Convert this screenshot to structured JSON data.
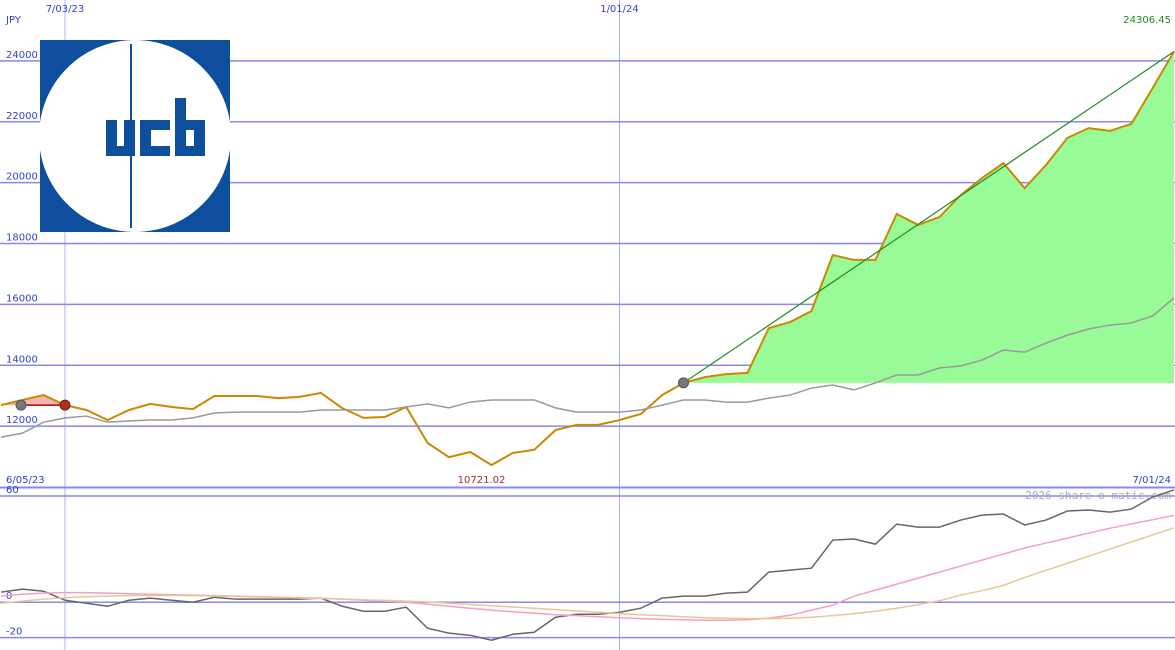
{
  "chart_data": [
    {
      "type": "line",
      "ylabel": "JPY",
      "x_start_label": "6/05/23",
      "x_end_label": "7/01/24",
      "categories": [
        null,
        null,
        null,
        "7/03/23",
        null,
        null,
        null,
        null,
        null,
        null,
        null,
        null,
        null,
        null,
        null,
        null,
        null,
        null,
        null,
        null,
        null,
        null,
        null,
        null,
        null,
        null,
        null,
        null,
        null,
        "1/01/24",
        null,
        null,
        null,
        null,
        null,
        null,
        null,
        null,
        null,
        null,
        null,
        null,
        null,
        null,
        null,
        null,
        null,
        null,
        null,
        null,
        null,
        null,
        null,
        null,
        null,
        null
      ],
      "series": [
        {
          "color": "#cc8800",
          "values": [
            12690,
            12860,
            13020,
            12690,
            12530,
            12200,
            12530,
            12730,
            12630,
            12560,
            12990,
            12990,
            12990,
            12920,
            12960,
            13090,
            12590,
            12270,
            12300,
            12630,
            11450,
            10980,
            11150,
            10721.02,
            11120,
            11220,
            11870,
            12040,
            12040,
            12200,
            12400,
            13020,
            13420,
            13610,
            13710,
            13750,
            15220,
            15420,
            15780,
            17620,
            17460,
            17460,
            18970,
            18610,
            18870,
            19590,
            20150,
            20640,
            19820,
            20580,
            21470,
            21790,
            21700,
            21930,
            23110,
            24306.45
          ]
        },
        {
          "color": "#999999",
          "values": [
            11640,
            11770,
            12130,
            12270,
            12330,
            12130,
            12170,
            12200,
            12200,
            12270,
            12430,
            12460,
            12460,
            12460,
            12460,
            12530,
            12530,
            12530,
            12530,
            12630,
            12730,
            12600,
            12790,
            12860,
            12860,
            12860,
            12600,
            12460,
            12460,
            12460,
            12530,
            12690,
            12860,
            12860,
            12790,
            12790,
            12920,
            13020,
            13250,
            13350,
            13190,
            13420,
            13680,
            13680,
            13910,
            13980,
            14170,
            14500,
            14430,
            14730,
            14990,
            15190,
            15320,
            15390,
            15620,
            16210
          ]
        }
      ],
      "ylim": [
        10000,
        26000
      ],
      "yticks": [
        12000,
        14000,
        16000,
        18000,
        20000,
        22000,
        24000
      ],
      "grid": true
    },
    {
      "type": "line",
      "watermark": "2026 share-o-matic.com",
      "series": [
        {
          "color": "#666666",
          "values": [
            5.7,
            7.4,
            6.2,
            1.1,
            -0.6,
            -2.3,
            1.1,
            2.3,
            1.1,
            0,
            2.8,
            1.7,
            1.7,
            1.7,
            1.7,
            2.3,
            -2.3,
            -5.1,
            -5.1,
            -2.8,
            -14.7,
            -17.5,
            -18.7,
            -21.5,
            -18.1,
            -17,
            -8.5,
            -6.8,
            -6.8,
            -5.7,
            -3.4,
            2.3,
            3.4,
            3.4,
            5.1,
            5.7,
            17,
            18.1,
            19.2,
            35.1,
            35.7,
            32.8,
            44.1,
            42.4,
            42.4,
            46.4,
            49.2,
            49.8,
            43.6,
            46.4,
            51.5,
            52.1,
            50.9,
            52.6,
            59.4,
            63.4
          ]
        },
        {
          "color": "#f4a0c0",
          "values": [
            3.4,
            4.5,
            5.1,
            5.4,
            5.4,
            5.1,
            4.8,
            4.5,
            4.2,
            4,
            3.7,
            3.4,
            3.1,
            2.8,
            2.5,
            2.3,
            1.7,
            1.1,
            0.6,
            0,
            -1.1,
            -2.3,
            -3.4,
            -4.5,
            -5.4,
            -6.2,
            -7.1,
            -7.6,
            -8.2,
            -8.8,
            -9.3,
            -9.6,
            -9.9,
            -10.2,
            -10.2,
            -9.9,
            -9,
            -7.4,
            -4.5,
            -1.7,
            3.4,
            6.8,
            10.2,
            13.6,
            17,
            20.4,
            23.8,
            27.2,
            30.6,
            33.4,
            36.2,
            39,
            41.8,
            44.2,
            46.6,
            49
          ]
        },
        {
          "color": "#e8c890",
          "values": [
            -0.6,
            0.6,
            1.7,
            2.5,
            3.1,
            3.4,
            3.7,
            3.8,
            3.8,
            3.7,
            3.5,
            3.3,
            3,
            2.7,
            2.4,
            2.1,
            1.8,
            1.4,
            1,
            0.6,
            0.1,
            -0.6,
            -1.3,
            -2,
            -2.7,
            -3.4,
            -4.2,
            -5,
            -5.7,
            -6.4,
            -7.1,
            -7.6,
            -8.2,
            -8.8,
            -9.1,
            -9.3,
            -9.3,
            -9,
            -8.5,
            -7.6,
            -6.5,
            -5.1,
            -3.4,
            -1.4,
            0.8,
            4,
            6.5,
            9.5,
            14,
            18,
            22,
            26,
            30,
            34,
            38,
            42
          ]
        }
      ],
      "ylim": [
        -27,
        64.5
      ],
      "yticks": [
        -20,
        0,
        60
      ],
      "grid": true
    }
  ]
}
